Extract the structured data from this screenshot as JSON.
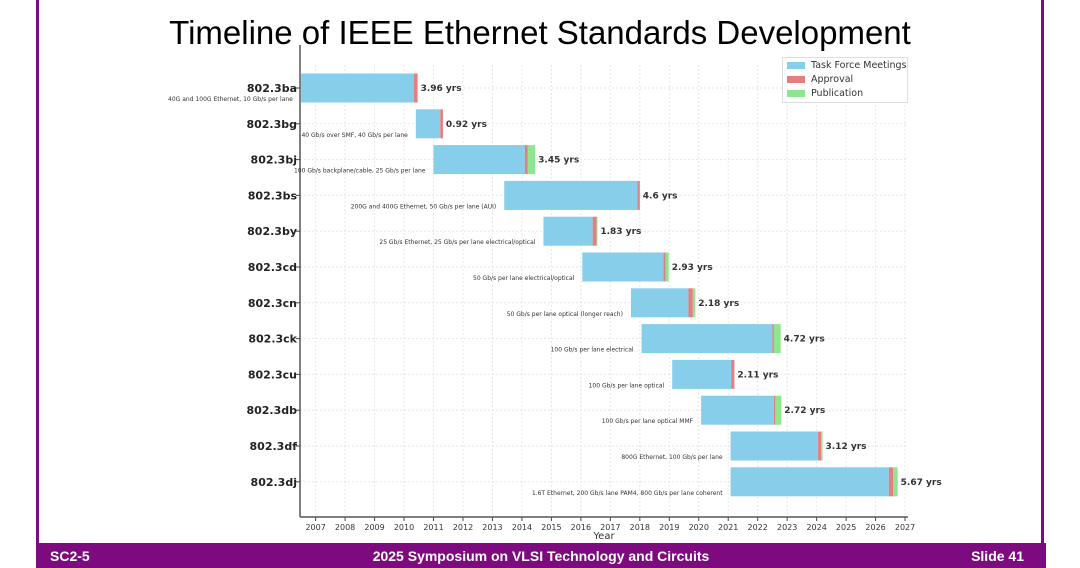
{
  "slide": {
    "title": "Timeline of IEEE Ethernet Standards Development",
    "footer_left": "SC2-5",
    "footer_center": "2025 Symposium on VLSI Technology and Circuits",
    "footer_right": "Slide 41"
  },
  "chart_data": {
    "type": "bar",
    "orientation": "horizontal-stacked-gantt",
    "xlabel": "Year",
    "xlim": [
      2006.47,
      2027.1
    ],
    "xticks": [
      "2007",
      "2008",
      "2009",
      "2010",
      "2011",
      "2012",
      "2013",
      "2014",
      "2015",
      "2016",
      "2017",
      "2018",
      "2019",
      "2020",
      "2021",
      "2022",
      "2023",
      "2024",
      "2025",
      "2026",
      "2027"
    ],
    "grid": true,
    "legend_position": "top-right",
    "legend": [
      "Task Force Meetings",
      "Approval",
      "Publication"
    ],
    "colors": {
      "task": "#87ceeb",
      "approval": "#e57f7f",
      "publication": "#8ee68e"
    },
    "standards": [
      {
        "name": "802.3ba",
        "desc": "40G and 100G Ethernet, 10 Gb/s per lane",
        "start": 2006.5,
        "task_end": 2010.33,
        "approval_end": 2010.46,
        "end": 2010.46,
        "duration": "3.96 yrs"
      },
      {
        "name": "802.3bg",
        "desc": "40 Gb/s over SMF, 40 Gb/s per lane",
        "start": 2010.4,
        "task_end": 2011.23,
        "approval_end": 2011.32,
        "end": 2011.32,
        "duration": "0.92 yrs"
      },
      {
        "name": "802.3bj",
        "desc": "100 Gb/s backplane/cable, 25 Gb/s per lane",
        "start": 2011.0,
        "task_end": 2014.1,
        "approval_end": 2014.2,
        "end": 2014.45,
        "duration": "3.45 yrs"
      },
      {
        "name": "802.3bs",
        "desc": "200G and 400G Ethernet, 50 Gb/s per lane (AUI)",
        "start": 2013.4,
        "task_end": 2017.92,
        "approval_end": 2018.0,
        "end": 2018.0,
        "duration": "4.6 yrs"
      },
      {
        "name": "802.3by",
        "desc": "25 Gb/s Ethernet, 25 Gb/s per lane electrical/optical",
        "start": 2014.73,
        "task_end": 2016.4,
        "approval_end": 2016.53,
        "end": 2016.56,
        "duration": "1.83 yrs"
      },
      {
        "name": "802.3cd",
        "desc": "50 Gb/s per lane electrical/optical",
        "start": 2016.05,
        "task_end": 2018.8,
        "approval_end": 2018.88,
        "end": 2018.98,
        "duration": "2.93 yrs"
      },
      {
        "name": "802.3cn",
        "desc": "50 Gb/s per lane optical (longer reach)",
        "start": 2017.7,
        "task_end": 2019.65,
        "approval_end": 2019.8,
        "end": 2019.88,
        "duration": "2.18 yrs"
      },
      {
        "name": "802.3ck",
        "desc": "100 Gb/s per lane electrical",
        "start": 2018.06,
        "task_end": 2022.5,
        "approval_end": 2022.55,
        "end": 2022.78,
        "duration": "4.72 yrs"
      },
      {
        "name": "802.3cu",
        "desc": "100 Gb/s per lane optical",
        "start": 2019.1,
        "task_end": 2021.1,
        "approval_end": 2021.21,
        "end": 2021.21,
        "duration": "2.11 yrs"
      },
      {
        "name": "802.3db",
        "desc": "100 Gb/s per lane optical MMF",
        "start": 2020.08,
        "task_end": 2022.55,
        "approval_end": 2022.6,
        "end": 2022.8,
        "duration": "2.72 yrs"
      },
      {
        "name": "802.3df",
        "desc": "800G Ethernet, 100 Gb/s per lane",
        "start": 2021.08,
        "task_end": 2024.05,
        "approval_end": 2024.15,
        "end": 2024.2,
        "duration": "3.12 yrs"
      },
      {
        "name": "802.3dj",
        "desc": "1.6T Ethernet, 200 Gb/s lane PAM4, 800 Gb/s per lane coherent",
        "start": 2021.08,
        "task_end": 2026.45,
        "approval_end": 2026.6,
        "end": 2026.75,
        "duration": "5.67 yrs"
      }
    ]
  }
}
